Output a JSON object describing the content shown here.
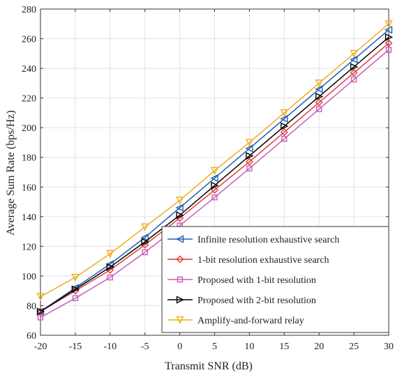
{
  "chart_data": {
    "type": "line",
    "title": "",
    "xlabel": "Transmit SNR (dB)",
    "ylabel": "Average Sum Rate (bps/Hz)",
    "x": [
      -20,
      -15,
      -10,
      -5,
      0,
      5,
      10,
      15,
      20,
      25,
      30
    ],
    "xlim": [
      -20,
      30
    ],
    "ylim": [
      60,
      280
    ],
    "xticks": [
      "-20",
      "-15",
      "-10",
      "-5",
      "0",
      "5",
      "10",
      "15",
      "20",
      "25",
      "30"
    ],
    "yticks": [
      "60",
      "80",
      "100",
      "120",
      "140",
      "160",
      "180",
      "200",
      "220",
      "240",
      "260",
      "280"
    ],
    "grid": true,
    "legend_position": "bottom-right",
    "series": [
      {
        "name": "Infinite resolution exhaustive search",
        "marker": "triangle-left",
        "color": "#1f5fb4",
        "values": [
          76,
          92,
          108,
          126,
          146,
          166,
          186,
          206,
          226,
          246,
          266
        ]
      },
      {
        "name": "1-bit resolution exhaustive search",
        "marker": "diamond",
        "color": "#e23b3b",
        "values": [
          76,
          90,
          104,
          121,
          139,
          158,
          177,
          197,
          217,
          237,
          257
        ]
      },
      {
        "name": "Proposed with 1-bit resolution",
        "marker": "square",
        "color": "#c95cb8",
        "values": [
          72,
          85,
          99,
          116,
          134,
          153,
          172.5,
          192.5,
          212.5,
          232.5,
          252.5
        ]
      },
      {
        "name": "Proposed with 2-bit resolution",
        "marker": "triangle-right",
        "color": "#000000",
        "values": [
          76,
          91,
          106,
          123,
          141,
          161,
          181,
          201,
          221,
          241,
          261
        ]
      },
      {
        "name": "Amplify-and-forward relay",
        "marker": "triangle-down",
        "color": "#f0ac1e",
        "values": [
          86,
          99,
          115,
          133,
          151,
          171,
          190,
          210,
          230,
          250,
          270
        ]
      }
    ]
  }
}
